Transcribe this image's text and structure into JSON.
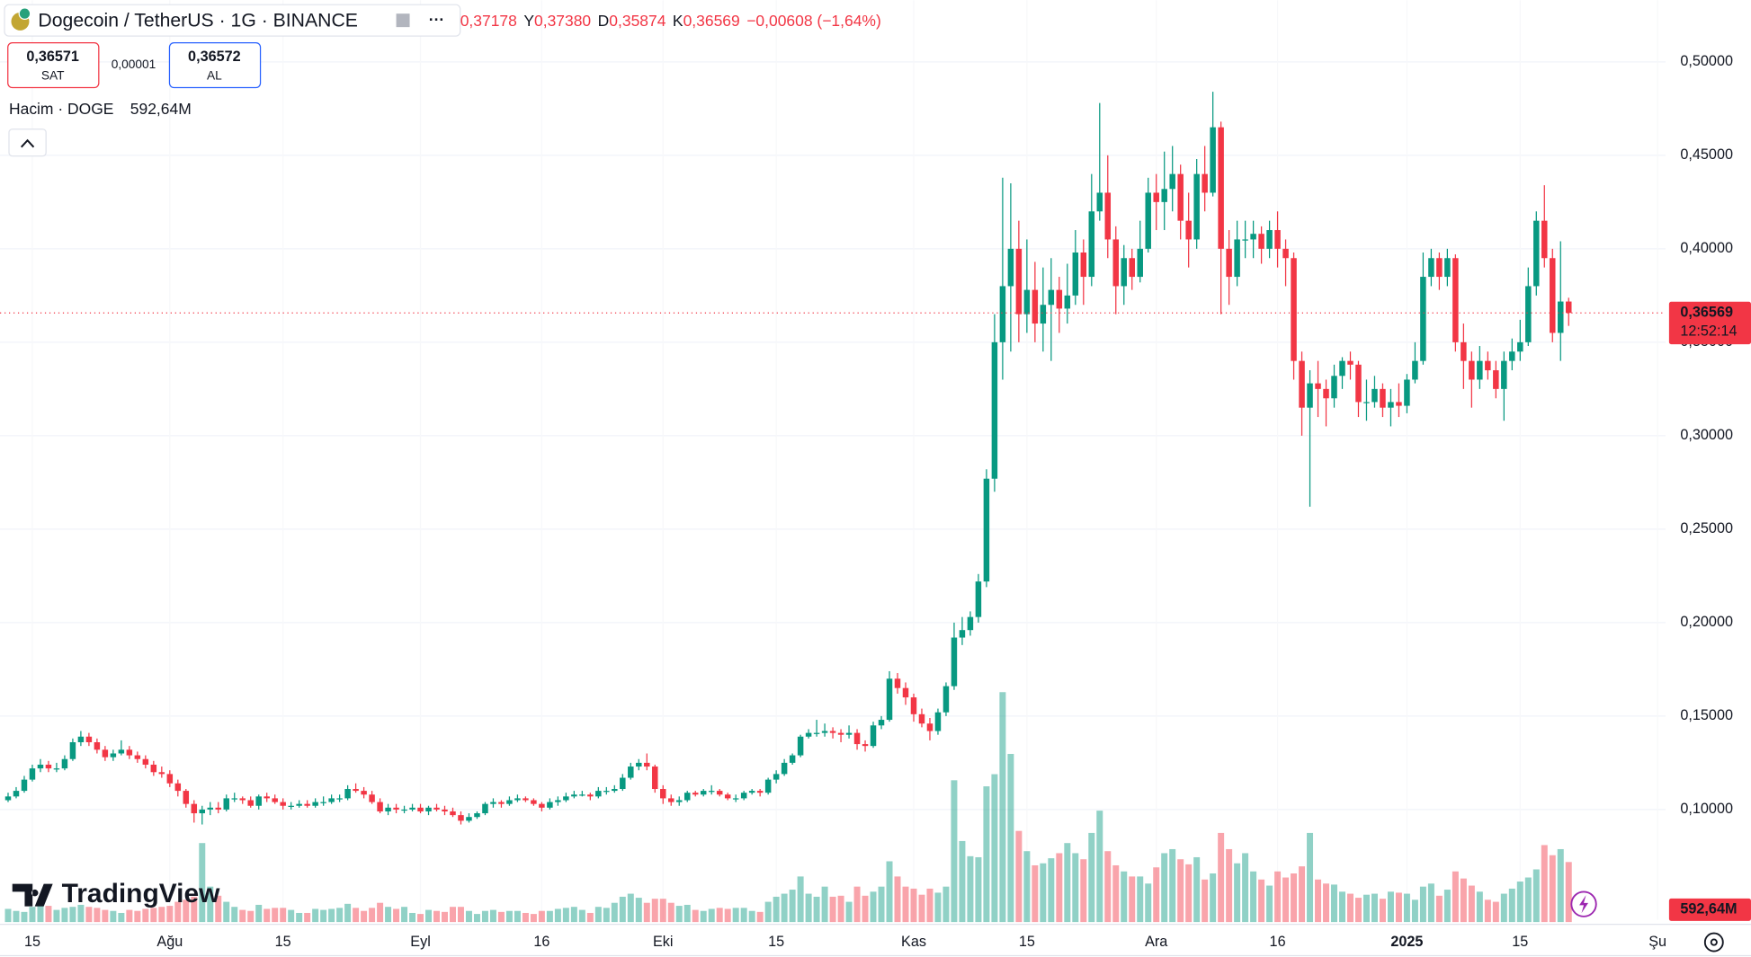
{
  "header": {
    "sell": {
      "price": "0,36571",
      "label": "SAT"
    },
    "spread": "0,00001",
    "buy": {
      "price": "0,36572",
      "label": "AL"
    },
    "open_value": "0,37178",
    "ohlc": [
      {
        "label": "Y",
        "value": "0,37380"
      },
      {
        "label": "D",
        "value": "0,35874"
      },
      {
        "label": "K",
        "value": "0,36569"
      }
    ],
    "change": "−0,00608 (−1,64%)",
    "volume_title": "Hacim · DOGE",
    "logo": "TradingView"
  },
  "chart_data": {
    "type": "candlestick",
    "title": "Dogecoin / TetherUS · 1G · BINANCE",
    "x": [
      "2024-07-12",
      "2024-07-13",
      "2024-07-14",
      "2024-07-15",
      "2024-07-16",
      "2024-07-17",
      "2024-07-18",
      "2024-07-19",
      "2024-07-20",
      "2024-07-21",
      "2024-07-22",
      "2024-07-23",
      "2024-07-24",
      "2024-07-25",
      "2024-07-26",
      "2024-07-27",
      "2024-07-28",
      "2024-07-29",
      "2024-07-30",
      "2024-07-31",
      "2024-08-01",
      "2024-08-02",
      "2024-08-03",
      "2024-08-04",
      "2024-08-05",
      "2024-08-06",
      "2024-08-07",
      "2024-08-08",
      "2024-08-09",
      "2024-08-10",
      "2024-08-11",
      "2024-08-12",
      "2024-08-13",
      "2024-08-14",
      "2024-08-15",
      "2024-08-16",
      "2024-08-17",
      "2024-08-18",
      "2024-08-19",
      "2024-08-20",
      "2024-08-21",
      "2024-08-22",
      "2024-08-23",
      "2024-08-24",
      "2024-08-25",
      "2024-08-26",
      "2024-08-27",
      "2024-08-28",
      "2024-08-29",
      "2024-08-30",
      "2024-08-31",
      "2024-09-01",
      "2024-09-02",
      "2024-09-03",
      "2024-09-04",
      "2024-09-05",
      "2024-09-06",
      "2024-09-07",
      "2024-09-08",
      "2024-09-09",
      "2024-09-10",
      "2024-09-11",
      "2024-09-12",
      "2024-09-13",
      "2024-09-14",
      "2024-09-15",
      "2024-09-16",
      "2024-09-17",
      "2024-09-18",
      "2024-09-19",
      "2024-09-20",
      "2024-09-21",
      "2024-09-22",
      "2024-09-23",
      "2024-09-24",
      "2024-09-25",
      "2024-09-26",
      "2024-09-27",
      "2024-09-28",
      "2024-09-29",
      "2024-09-30",
      "2024-10-01",
      "2024-10-02",
      "2024-10-03",
      "2024-10-04",
      "2024-10-05",
      "2024-10-06",
      "2024-10-07",
      "2024-10-08",
      "2024-10-09",
      "2024-10-10",
      "2024-10-11",
      "2024-10-12",
      "2024-10-13",
      "2024-10-14",
      "2024-10-15",
      "2024-10-16",
      "2024-10-17",
      "2024-10-18",
      "2024-10-19",
      "2024-10-20",
      "2024-10-21",
      "2024-10-22",
      "2024-10-23",
      "2024-10-24",
      "2024-10-25",
      "2024-10-26",
      "2024-10-27",
      "2024-10-28",
      "2024-10-29",
      "2024-10-30",
      "2024-10-31",
      "2024-11-01",
      "2024-11-02",
      "2024-11-03",
      "2024-11-04",
      "2024-11-05",
      "2024-11-06",
      "2024-11-07",
      "2024-11-08",
      "2024-11-09",
      "2024-11-10",
      "2024-11-11",
      "2024-11-12",
      "2024-11-13",
      "2024-11-14",
      "2024-11-15",
      "2024-11-16",
      "2024-11-17",
      "2024-11-18",
      "2024-11-19",
      "2024-11-20",
      "2024-11-21",
      "2024-11-22",
      "2024-11-23",
      "2024-11-24",
      "2024-11-25",
      "2024-11-26",
      "2024-11-27",
      "2024-11-28",
      "2024-11-29",
      "2024-11-30",
      "2024-12-01",
      "2024-12-02",
      "2024-12-03",
      "2024-12-04",
      "2024-12-05",
      "2024-12-06",
      "2024-12-07",
      "2024-12-08",
      "2024-12-09",
      "2024-12-10",
      "2024-12-11",
      "2024-12-12",
      "2024-12-13",
      "2024-12-14",
      "2024-12-15",
      "2024-12-16",
      "2024-12-17",
      "2024-12-18",
      "2024-12-19",
      "2024-12-20",
      "2024-12-21",
      "2024-12-22",
      "2024-12-23",
      "2024-12-24",
      "2024-12-25",
      "2024-12-26",
      "2024-12-27",
      "2024-12-28",
      "2024-12-29",
      "2024-12-30",
      "2024-12-31",
      "2025-01-01",
      "2025-01-02",
      "2025-01-03",
      "2025-01-04",
      "2025-01-05",
      "2025-01-06",
      "2025-01-07",
      "2025-01-08",
      "2025-01-09",
      "2025-01-10",
      "2025-01-11",
      "2025-01-12",
      "2025-01-13",
      "2025-01-14",
      "2025-01-15",
      "2025-01-16",
      "2025-01-17",
      "2025-01-18",
      "2025-01-19",
      "2025-01-20",
      "2025-01-21"
    ],
    "open": [
      0.105,
      0.107,
      0.11,
      0.116,
      0.122,
      0.124,
      0.122,
      0.122,
      0.127,
      0.136,
      0.139,
      0.136,
      0.132,
      0.128,
      0.13,
      0.132,
      0.129,
      0.127,
      0.124,
      0.12,
      0.119,
      0.114,
      0.11,
      0.103,
      0.098,
      0.1,
      0.101,
      0.1,
      0.106,
      0.106,
      0.105,
      0.102,
      0.107,
      0.106,
      0.104,
      0.102,
      0.102,
      0.103,
      0.102,
      0.104,
      0.104,
      0.106,
      0.106,
      0.111,
      0.11,
      0.108,
      0.104,
      0.099,
      0.101,
      0.1,
      0.1,
      0.101,
      0.099,
      0.101,
      0.1,
      0.099,
      0.097,
      0.094,
      0.096,
      0.098,
      0.103,
      0.104,
      0.103,
      0.105,
      0.106,
      0.105,
      0.103,
      0.101,
      0.104,
      0.105,
      0.107,
      0.108,
      0.108,
      0.107,
      0.11,
      0.11,
      0.111,
      0.117,
      0.123,
      0.125,
      0.123,
      0.111,
      0.106,
      0.104,
      0.105,
      0.109,
      0.108,
      0.11,
      0.11,
      0.108,
      0.106,
      0.106,
      0.109,
      0.11,
      0.109,
      0.116,
      0.119,
      0.125,
      0.129,
      0.139,
      0.141,
      0.141,
      0.142,
      0.141,
      0.14,
      0.141,
      0.135,
      0.134,
      0.145,
      0.148,
      0.17,
      0.165,
      0.16,
      0.151,
      0.146,
      0.142,
      0.152,
      0.166,
      0.192,
      0.196,
      0.203,
      0.222,
      0.277,
      0.35,
      0.38,
      0.4,
      0.365,
      0.378,
      0.36,
      0.37,
      0.378,
      0.368,
      0.375,
      0.398,
      0.385,
      0.42,
      0.43,
      0.405,
      0.38,
      0.395,
      0.385,
      0.4,
      0.43,
      0.425,
      0.432,
      0.44,
      0.415,
      0.405,
      0.44,
      0.43,
      0.465,
      0.4,
      0.385,
      0.405,
      0.405,
      0.408,
      0.4,
      0.41,
      0.4,
      0.395,
      0.34,
      0.315,
      0.328,
      0.325,
      0.32,
      0.332,
      0.34,
      0.338,
      0.318,
      0.318,
      0.325,
      0.315,
      0.318,
      0.316,
      0.33,
      0.34,
      0.385,
      0.395,
      0.385,
      0.395,
      0.35,
      0.34,
      0.33,
      0.34,
      0.335,
      0.325,
      0.34,
      0.345,
      0.35,
      0.38,
      0.415,
      0.395,
      0.355,
      0.37178
    ],
    "high": [
      0.109,
      0.112,
      0.118,
      0.124,
      0.127,
      0.126,
      0.125,
      0.129,
      0.138,
      0.142,
      0.141,
      0.138,
      0.134,
      0.132,
      0.137,
      0.134,
      0.131,
      0.129,
      0.126,
      0.123,
      0.121,
      0.116,
      0.111,
      0.105,
      0.102,
      0.104,
      0.104,
      0.108,
      0.109,
      0.107,
      0.107,
      0.108,
      0.109,
      0.108,
      0.106,
      0.104,
      0.105,
      0.105,
      0.106,
      0.107,
      0.108,
      0.108,
      0.113,
      0.114,
      0.112,
      0.11,
      0.106,
      0.103,
      0.103,
      0.102,
      0.103,
      0.103,
      0.102,
      0.103,
      0.102,
      0.101,
      0.099,
      0.098,
      0.099,
      0.104,
      0.106,
      0.105,
      0.107,
      0.108,
      0.107,
      0.106,
      0.104,
      0.106,
      0.107,
      0.109,
      0.11,
      0.11,
      0.109,
      0.112,
      0.112,
      0.113,
      0.119,
      0.125,
      0.127,
      0.13,
      0.124,
      0.113,
      0.108,
      0.107,
      0.11,
      0.11,
      0.111,
      0.113,
      0.111,
      0.109,
      0.108,
      0.11,
      0.111,
      0.111,
      0.117,
      0.121,
      0.127,
      0.13,
      0.14,
      0.143,
      0.148,
      0.146,
      0.144,
      0.143,
      0.145,
      0.143,
      0.137,
      0.147,
      0.15,
      0.174,
      0.173,
      0.168,
      0.162,
      0.154,
      0.149,
      0.154,
      0.168,
      0.2,
      0.203,
      0.206,
      0.226,
      0.282,
      0.365,
      0.438,
      0.435,
      0.415,
      0.405,
      0.393,
      0.39,
      0.395,
      0.385,
      0.392,
      0.41,
      0.405,
      0.44,
      0.478,
      0.45,
      0.412,
      0.402,
      0.4,
      0.415,
      0.438,
      0.44,
      0.452,
      0.455,
      0.445,
      0.43,
      0.448,
      0.455,
      0.484,
      0.468,
      0.41,
      0.415,
      0.415,
      0.415,
      0.412,
      0.415,
      0.42,
      0.405,
      0.398,
      0.345,
      0.335,
      0.34,
      0.33,
      0.338,
      0.342,
      0.345,
      0.34,
      0.33,
      0.332,
      0.328,
      0.325,
      0.328,
      0.333,
      0.35,
      0.398,
      0.4,
      0.398,
      0.4,
      0.397,
      0.36,
      0.345,
      0.348,
      0.345,
      0.34,
      0.345,
      0.352,
      0.362,
      0.39,
      0.42,
      0.434,
      0.4,
      0.404,
      0.3738
    ],
    "low": [
      0.104,
      0.106,
      0.109,
      0.115,
      0.12,
      0.12,
      0.12,
      0.121,
      0.126,
      0.134,
      0.134,
      0.13,
      0.126,
      0.126,
      0.129,
      0.127,
      0.125,
      0.122,
      0.118,
      0.117,
      0.112,
      0.107,
      0.101,
      0.093,
      0.092,
      0.097,
      0.098,
      0.099,
      0.104,
      0.103,
      0.101,
      0.1,
      0.104,
      0.103,
      0.1,
      0.1,
      0.101,
      0.101,
      0.101,
      0.102,
      0.103,
      0.104,
      0.105,
      0.109,
      0.106,
      0.103,
      0.098,
      0.097,
      0.098,
      0.098,
      0.099,
      0.098,
      0.097,
      0.099,
      0.097,
      0.096,
      0.092,
      0.093,
      0.095,
      0.097,
      0.101,
      0.101,
      0.102,
      0.104,
      0.104,
      0.102,
      0.099,
      0.1,
      0.102,
      0.104,
      0.106,
      0.107,
      0.105,
      0.106,
      0.108,
      0.109,
      0.11,
      0.116,
      0.121,
      0.121,
      0.109,
      0.103,
      0.102,
      0.102,
      0.104,
      0.107,
      0.107,
      0.108,
      0.107,
      0.105,
      0.104,
      0.105,
      0.108,
      0.107,
      0.108,
      0.114,
      0.118,
      0.124,
      0.128,
      0.138,
      0.139,
      0.139,
      0.138,
      0.136,
      0.138,
      0.132,
      0.131,
      0.133,
      0.143,
      0.147,
      0.162,
      0.156,
      0.147,
      0.144,
      0.137,
      0.14,
      0.15,
      0.164,
      0.188,
      0.193,
      0.2,
      0.219,
      0.27,
      0.33,
      0.345,
      0.35,
      0.355,
      0.35,
      0.345,
      0.34,
      0.355,
      0.36,
      0.37,
      0.37,
      0.38,
      0.415,
      0.395,
      0.365,
      0.37,
      0.378,
      0.382,
      0.398,
      0.41,
      0.41,
      0.42,
      0.405,
      0.39,
      0.4,
      0.42,
      0.428,
      0.365,
      0.37,
      0.38,
      0.395,
      0.395,
      0.392,
      0.395,
      0.39,
      0.38,
      0.33,
      0.3,
      0.262,
      0.31,
      0.305,
      0.315,
      0.325,
      0.33,
      0.31,
      0.308,
      0.315,
      0.31,
      0.305,
      0.31,
      0.312,
      0.328,
      0.338,
      0.38,
      0.378,
      0.38,
      0.345,
      0.325,
      0.315,
      0.325,
      0.33,
      0.32,
      0.308,
      0.335,
      0.34,
      0.348,
      0.375,
      0.39,
      0.35,
      0.34,
      0.35874
    ],
    "close": [
      0.107,
      0.11,
      0.116,
      0.122,
      0.124,
      0.122,
      0.122,
      0.127,
      0.136,
      0.139,
      0.136,
      0.132,
      0.128,
      0.13,
      0.132,
      0.129,
      0.127,
      0.124,
      0.12,
      0.119,
      0.114,
      0.11,
      0.103,
      0.098,
      0.1,
      0.101,
      0.1,
      0.106,
      0.106,
      0.105,
      0.102,
      0.107,
      0.106,
      0.104,
      0.102,
      0.102,
      0.103,
      0.102,
      0.104,
      0.104,
      0.106,
      0.106,
      0.111,
      0.11,
      0.108,
      0.104,
      0.099,
      0.101,
      0.1,
      0.1,
      0.101,
      0.099,
      0.101,
      0.1,
      0.099,
      0.097,
      0.094,
      0.096,
      0.098,
      0.103,
      0.104,
      0.103,
      0.105,
      0.106,
      0.105,
      0.103,
      0.101,
      0.104,
      0.105,
      0.107,
      0.108,
      0.108,
      0.107,
      0.11,
      0.11,
      0.111,
      0.117,
      0.123,
      0.125,
      0.123,
      0.111,
      0.106,
      0.104,
      0.105,
      0.109,
      0.108,
      0.11,
      0.11,
      0.108,
      0.106,
      0.106,
      0.109,
      0.11,
      0.109,
      0.116,
      0.119,
      0.125,
      0.129,
      0.139,
      0.141,
      0.141,
      0.142,
      0.141,
      0.14,
      0.141,
      0.135,
      0.134,
      0.145,
      0.148,
      0.17,
      0.165,
      0.16,
      0.151,
      0.146,
      0.142,
      0.152,
      0.166,
      0.192,
      0.196,
      0.203,
      0.222,
      0.277,
      0.35,
      0.38,
      0.4,
      0.365,
      0.378,
      0.36,
      0.37,
      0.378,
      0.368,
      0.375,
      0.398,
      0.385,
      0.42,
      0.43,
      0.405,
      0.38,
      0.395,
      0.385,
      0.4,
      0.43,
      0.425,
      0.432,
      0.44,
      0.415,
      0.405,
      0.44,
      0.43,
      0.465,
      0.4,
      0.385,
      0.405,
      0.405,
      0.408,
      0.4,
      0.41,
      0.4,
      0.395,
      0.34,
      0.315,
      0.328,
      0.325,
      0.32,
      0.332,
      0.34,
      0.338,
      0.318,
      0.318,
      0.325,
      0.315,
      0.318,
      0.316,
      0.33,
      0.34,
      0.385,
      0.395,
      0.385,
      0.395,
      0.35,
      0.34,
      0.33,
      0.34,
      0.335,
      0.325,
      0.34,
      0.345,
      0.35,
      0.38,
      0.415,
      0.395,
      0.355,
      0.37178,
      0.36569
    ],
    "volume": [
      130,
      110,
      100,
      150,
      170,
      160,
      120,
      140,
      150,
      170,
      150,
      140,
      120,
      110,
      90,
      120,
      110,
      130,
      140,
      150,
      160,
      200,
      220,
      250,
      780,
      350,
      260,
      200,
      150,
      120,
      110,
      170,
      130,
      140,
      140,
      120,
      90,
      90,
      130,
      120,
      130,
      140,
      180,
      140,
      110,
      140,
      190,
      150,
      130,
      150,
      90,
      80,
      120,
      110,
      100,
      150,
      150,
      110,
      80,
      110,
      120,
      100,
      110,
      110,
      90,
      80,
      110,
      110,
      130,
      140,
      150,
      120,
      90,
      150,
      140,
      190,
      250,
      280,
      240,
      190,
      230,
      230,
      190,
      160,
      170,
      120,
      110,
      130,
      140,
      130,
      140,
      140,
      110,
      100,
      200,
      250,
      280,
      320,
      450,
      280,
      250,
      350,
      250,
      260,
      200,
      350,
      260,
      300,
      350,
      600,
      450,
      350,
      330,
      270,
      330,
      290,
      350,
      1400,
      800,
      650,
      640,
      1340,
      1460,
      2270,
      1660,
      900,
      700,
      560,
      580,
      630,
      680,
      780,
      680,
      620,
      880,
      1100,
      700,
      560,
      500,
      450,
      450,
      380,
      540,
      680,
      720,
      620,
      570,
      640,
      420,
      480,
      880,
      720,
      580,
      680,
      500,
      420,
      360,
      500,
      440,
      480,
      550,
      880,
      420,
      380,
      370,
      300,
      280,
      240,
      270,
      280,
      230,
      300,
      290,
      280,
      220,
      350,
      380,
      260,
      320,
      500,
      430,
      360,
      300,
      220,
      200,
      280,
      330,
      400,
      440,
      520,
      760,
      660,
      720,
      592.64
    ],
    "volume_label": "592,64M",
    "up_color": "#089981",
    "down_color": "#f23645",
    "xlim": [
      "2024-07-11",
      "2025-02-02"
    ],
    "xticks": [
      {
        "value": "2024-07-15",
        "label": "15"
      },
      {
        "value": "2024-08-01",
        "label": "Ağu"
      },
      {
        "value": "2024-08-15",
        "label": "15"
      },
      {
        "value": "2024-09-01",
        "label": "Eyl"
      },
      {
        "value": "2024-09-16",
        "label": "16"
      },
      {
        "value": "2024-10-01",
        "label": "Eki"
      },
      {
        "value": "2024-10-15",
        "label": "15"
      },
      {
        "value": "2024-11-01",
        "label": "Kas"
      },
      {
        "value": "2024-11-15",
        "label": "15"
      },
      {
        "value": "2024-12-01",
        "label": "Ara"
      },
      {
        "value": "2024-12-16",
        "label": "16"
      },
      {
        "value": "2025-01-01",
        "label": "2025"
      },
      {
        "value": "2025-01-15",
        "label": "15"
      },
      {
        "value": "2025-02-01",
        "label": "Şu"
      }
    ],
    "ylim": [
      0.041,
      0.533
    ],
    "yticks": [
      {
        "value": 0.1,
        "label": "0,10000"
      },
      {
        "value": 0.15,
        "label": "0,15000"
      },
      {
        "value": 0.2,
        "label": "0,20000"
      },
      {
        "value": 0.25,
        "label": "0,25000"
      },
      {
        "value": 0.3,
        "label": "0,30000"
      },
      {
        "value": 0.35,
        "label": "0,35000"
      },
      {
        "value": 0.4,
        "label": "0,40000"
      },
      {
        "value": 0.45,
        "label": "0,45000"
      },
      {
        "value": 0.5,
        "label": "0,50000"
      }
    ],
    "grid": true,
    "last_price_label": "0,36569",
    "countdown": "12:52:14"
  }
}
